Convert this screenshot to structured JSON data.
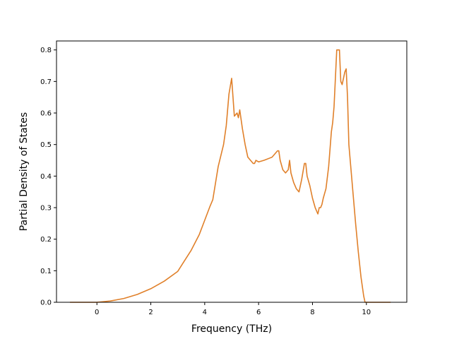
{
  "chart_data": {
    "type": "line",
    "xlabel": "Frequency (THz)",
    "ylabel": "Partial Density of States",
    "xlim": [
      -1.5,
      11.5
    ],
    "ylim": [
      0.0,
      0.8284
    ],
    "xticks": [
      0,
      2,
      4,
      6,
      8,
      10
    ],
    "yticks": [
      0.0,
      0.1,
      0.2,
      0.3,
      0.4,
      0.5,
      0.6,
      0.7,
      0.8
    ],
    "xtick_labels": [
      "0",
      "2",
      "4",
      "6",
      "8",
      "10"
    ],
    "ytick_labels": [
      "0.0",
      "0.1",
      "0.2",
      "0.3",
      "0.4",
      "0.5",
      "0.6",
      "0.7",
      "0.8"
    ],
    "grid": false,
    "series": [
      {
        "color": "#e0802a",
        "x": [
          -1.0,
          0.0,
          0.5,
          1.0,
          1.5,
          2.0,
          2.5,
          3.0,
          3.2,
          3.5,
          3.8,
          4.0,
          4.2,
          4.3,
          4.5,
          4.7,
          4.8,
          4.9,
          5.0,
          5.1,
          5.2,
          5.25,
          5.3,
          5.4,
          5.5,
          5.6,
          5.7,
          5.8,
          5.85,
          5.9,
          6.0,
          6.2,
          6.5,
          6.7,
          6.75,
          6.8,
          6.9,
          7.0,
          7.1,
          7.15,
          7.2,
          7.3,
          7.4,
          7.5,
          7.6,
          7.7,
          7.75,
          7.8,
          7.9,
          8.0,
          8.1,
          8.2,
          8.25,
          8.3,
          8.35,
          8.4,
          8.5,
          8.6,
          8.7,
          8.75,
          8.8,
          8.9,
          9.0,
          9.05,
          9.1,
          9.2,
          9.25,
          9.3,
          9.35,
          9.4,
          9.5,
          9.6,
          9.7,
          9.8,
          9.9,
          9.95,
          10.0,
          10.5,
          10.9
        ],
        "y": [
          0.0,
          0.0,
          0.004,
          0.012,
          0.025,
          0.043,
          0.067,
          0.098,
          0.125,
          0.165,
          0.215,
          0.26,
          0.305,
          0.325,
          0.43,
          0.5,
          0.56,
          0.66,
          0.71,
          0.59,
          0.6,
          0.585,
          0.61,
          0.55,
          0.5,
          0.46,
          0.45,
          0.44,
          0.44,
          0.45,
          0.445,
          0.45,
          0.46,
          0.48,
          0.48,
          0.45,
          0.42,
          0.41,
          0.42,
          0.45,
          0.41,
          0.38,
          0.36,
          0.35,
          0.39,
          0.44,
          0.44,
          0.4,
          0.37,
          0.33,
          0.3,
          0.28,
          0.3,
          0.3,
          0.31,
          0.33,
          0.36,
          0.43,
          0.54,
          0.57,
          0.62,
          0.8,
          0.8,
          0.7,
          0.69,
          0.73,
          0.74,
          0.65,
          0.5,
          0.45,
          0.35,
          0.25,
          0.16,
          0.08,
          0.02,
          0.0,
          0.0,
          0.0,
          0.0
        ]
      }
    ]
  }
}
